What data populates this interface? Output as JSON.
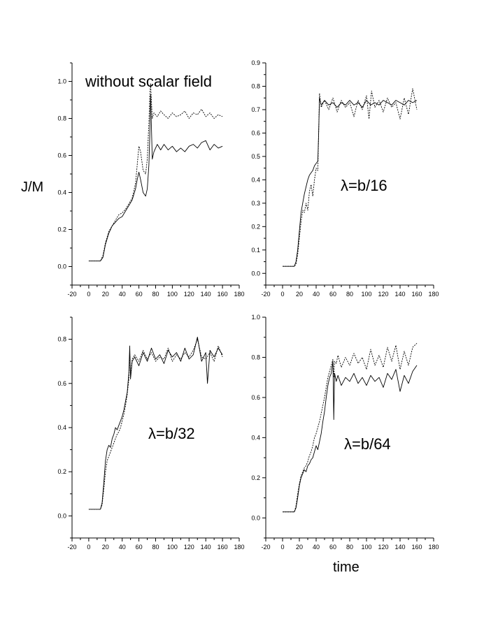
{
  "figure": {
    "ylabel": "J/M",
    "xlabel": "time"
  },
  "chart_data": [
    {
      "type": "line",
      "annotation": "without scalar field",
      "xlim": [
        -20,
        180
      ],
      "ylim": [
        -0.1,
        1.1
      ],
      "xticks": [
        -20,
        0,
        20,
        40,
        60,
        80,
        100,
        120,
        140,
        160,
        180
      ],
      "xtick_labels": [
        "-20",
        "0",
        "20",
        "40",
        "60",
        "80",
        "100",
        "120",
        "140",
        "160",
        "180"
      ],
      "yticks": [
        0.0,
        0.2,
        0.4,
        0.6,
        0.8,
        1.0
      ],
      "ytick_labels": [
        "0.0",
        "0.2",
        "0.4",
        "0.6",
        "0.8",
        "1.0"
      ],
      "series": [
        {
          "style": "solid",
          "x": [
            0,
            10,
            14,
            17,
            20,
            24,
            28,
            32,
            36,
            40,
            44,
            48,
            52,
            56,
            58,
            60,
            62,
            65,
            68,
            70,
            72,
            73,
            74,
            76,
            78,
            82,
            86,
            90,
            95,
            100,
            105,
            110,
            115,
            120,
            125,
            130,
            135,
            140,
            145,
            150,
            155,
            160
          ],
          "y": [
            0.03,
            0.03,
            0.03,
            0.05,
            0.12,
            0.18,
            0.22,
            0.24,
            0.26,
            0.27,
            0.3,
            0.33,
            0.36,
            0.42,
            0.47,
            0.51,
            0.47,
            0.4,
            0.38,
            0.42,
            0.55,
            0.7,
            0.93,
            0.58,
            0.62,
            0.66,
            0.63,
            0.66,
            0.63,
            0.65,
            0.62,
            0.64,
            0.62,
            0.65,
            0.66,
            0.64,
            0.67,
            0.68,
            0.63,
            0.66,
            0.64,
            0.65
          ]
        },
        {
          "style": "dotted",
          "x": [
            0,
            10,
            14,
            17,
            20,
            24,
            28,
            32,
            36,
            40,
            44,
            48,
            52,
            56,
            58,
            60,
            62,
            65,
            68,
            70,
            72,
            73,
            74,
            76,
            78,
            82,
            86,
            90,
            95,
            100,
            105,
            110,
            115,
            120,
            125,
            130,
            135,
            140,
            145,
            150,
            155,
            160
          ],
          "y": [
            0.03,
            0.03,
            0.03,
            0.06,
            0.13,
            0.19,
            0.22,
            0.25,
            0.28,
            0.29,
            0.31,
            0.34,
            0.37,
            0.45,
            0.55,
            0.65,
            0.62,
            0.52,
            0.5,
            0.58,
            0.78,
            0.92,
            0.99,
            0.8,
            0.83,
            0.81,
            0.84,
            0.82,
            0.8,
            0.83,
            0.81,
            0.82,
            0.84,
            0.8,
            0.83,
            0.82,
            0.85,
            0.81,
            0.83,
            0.8,
            0.82,
            0.81
          ]
        }
      ]
    },
    {
      "type": "line",
      "annotation": "λ=b/16",
      "xlim": [
        -20,
        180
      ],
      "ylim": [
        -0.05,
        0.9
      ],
      "xticks": [
        -20,
        0,
        20,
        40,
        60,
        80,
        100,
        120,
        140,
        160,
        180
      ],
      "xtick_labels": [
        "-20",
        "0",
        "20",
        "40",
        "60",
        "80",
        "100",
        "120",
        "140",
        "160",
        "180"
      ],
      "yticks": [
        0.0,
        0.1,
        0.2,
        0.3,
        0.4,
        0.5,
        0.6,
        0.7,
        0.8,
        0.9
      ],
      "ytick_labels": [
        "0.0",
        "0.1",
        "0.2",
        "0.3",
        "0.4",
        "0.5",
        "0.6",
        "0.7",
        "0.8",
        "0.9"
      ],
      "series": [
        {
          "style": "solid",
          "x": [
            0,
            10,
            14,
            16,
            18,
            20,
            22,
            24,
            26,
            28,
            30,
            32,
            34,
            36,
            38,
            40,
            42,
            43,
            44,
            46,
            50,
            55,
            60,
            65,
            70,
            75,
            80,
            85,
            90,
            95,
            100,
            105,
            110,
            115,
            120,
            125,
            130,
            135,
            140,
            145,
            150,
            155,
            160
          ],
          "y": [
            0.03,
            0.03,
            0.03,
            0.05,
            0.1,
            0.18,
            0.26,
            0.3,
            0.34,
            0.37,
            0.4,
            0.42,
            0.43,
            0.44,
            0.46,
            0.47,
            0.48,
            0.6,
            0.75,
            0.72,
            0.74,
            0.72,
            0.73,
            0.71,
            0.73,
            0.72,
            0.74,
            0.72,
            0.73,
            0.71,
            0.74,
            0.72,
            0.73,
            0.72,
            0.74,
            0.73,
            0.72,
            0.74,
            0.73,
            0.72,
            0.74,
            0.73,
            0.74
          ]
        },
        {
          "style": "dotted",
          "x": [
            0,
            10,
            14,
            16,
            18,
            20,
            22,
            24,
            26,
            28,
            30,
            32,
            34,
            36,
            38,
            40,
            42,
            43,
            44,
            46,
            50,
            55,
            60,
            65,
            70,
            75,
            80,
            85,
            90,
            95,
            100,
            103,
            106,
            110,
            115,
            120,
            125,
            130,
            135,
            140,
            145,
            150,
            155,
            160
          ],
          "y": [
            0.03,
            0.03,
            0.03,
            0.04,
            0.08,
            0.15,
            0.22,
            0.27,
            0.26,
            0.3,
            0.27,
            0.35,
            0.38,
            0.33,
            0.4,
            0.45,
            0.44,
            0.6,
            0.77,
            0.71,
            0.74,
            0.7,
            0.75,
            0.69,
            0.74,
            0.71,
            0.73,
            0.67,
            0.74,
            0.7,
            0.76,
            0.66,
            0.78,
            0.71,
            0.74,
            0.69,
            0.75,
            0.71,
            0.73,
            0.66,
            0.75,
            0.68,
            0.79,
            0.7
          ]
        }
      ]
    },
    {
      "type": "line",
      "annotation": "λ=b/32",
      "xlim": [
        -20,
        180
      ],
      "ylim": [
        -0.1,
        0.9
      ],
      "xticks": [
        -20,
        0,
        20,
        40,
        60,
        80,
        100,
        120,
        140,
        160,
        180
      ],
      "xtick_labels": [
        "-20",
        "0",
        "20",
        "40",
        "60",
        "80",
        "100",
        "120",
        "140",
        "160",
        "180"
      ],
      "yticks": [
        0.0,
        0.2,
        0.4,
        0.6,
        0.8
      ],
      "ytick_labels": [
        "0.0",
        "0.2",
        "0.4",
        "0.6",
        "0.8"
      ],
      "series": [
        {
          "style": "solid",
          "x": [
            0,
            10,
            14,
            16,
            18,
            20,
            22,
            24,
            26,
            28,
            30,
            32,
            34,
            36,
            38,
            40,
            42,
            44,
            46,
            48,
            49,
            50,
            52,
            55,
            60,
            65,
            70,
            75,
            80,
            85,
            90,
            95,
            100,
            105,
            110,
            115,
            120,
            125,
            130,
            135,
            140,
            142,
            145,
            150,
            155,
            160
          ],
          "y": [
            0.03,
            0.03,
            0.03,
            0.06,
            0.15,
            0.25,
            0.3,
            0.32,
            0.31,
            0.35,
            0.37,
            0.4,
            0.39,
            0.41,
            0.43,
            0.45,
            0.48,
            0.52,
            0.56,
            0.65,
            0.77,
            0.62,
            0.7,
            0.72,
            0.68,
            0.74,
            0.7,
            0.76,
            0.71,
            0.73,
            0.69,
            0.75,
            0.72,
            0.74,
            0.7,
            0.76,
            0.71,
            0.73,
            0.81,
            0.7,
            0.74,
            0.6,
            0.75,
            0.72,
            0.76,
            0.73
          ]
        },
        {
          "style": "dotted",
          "x": [
            0,
            10,
            14,
            16,
            18,
            20,
            22,
            24,
            26,
            28,
            30,
            32,
            34,
            36,
            38,
            40,
            42,
            44,
            46,
            48,
            49,
            50,
            52,
            55,
            60,
            65,
            70,
            75,
            80,
            85,
            90,
            95,
            100,
            105,
            110,
            115,
            120,
            125,
            130,
            135,
            140,
            145,
            150,
            155,
            160
          ],
          "y": [
            0.03,
            0.03,
            0.03,
            0.05,
            0.12,
            0.2,
            0.25,
            0.27,
            0.29,
            0.31,
            0.33,
            0.35,
            0.37,
            0.38,
            0.4,
            0.43,
            0.46,
            0.5,
            0.55,
            0.62,
            0.74,
            0.64,
            0.71,
            0.73,
            0.7,
            0.75,
            0.71,
            0.74,
            0.7,
            0.72,
            0.71,
            0.76,
            0.7,
            0.73,
            0.71,
            0.74,
            0.72,
            0.75,
            0.8,
            0.72,
            0.71,
            0.74,
            0.7,
            0.77,
            0.72
          ]
        }
      ]
    },
    {
      "type": "line",
      "annotation": "λ=b/64",
      "xlim": [
        -20,
        180
      ],
      "ylim": [
        -0.1,
        1.0
      ],
      "xticks": [
        -20,
        0,
        20,
        40,
        60,
        80,
        100,
        120,
        140,
        160,
        180
      ],
      "xtick_labels": [
        "-20",
        "0",
        "20",
        "40",
        "60",
        "80",
        "100",
        "120",
        "140",
        "160",
        "180"
      ],
      "yticks": [
        0.0,
        0.2,
        0.4,
        0.6,
        0.8,
        1.0
      ],
      "ytick_labels": [
        "0.0",
        "0.2",
        "0.4",
        "0.6",
        "0.8",
        "1.0"
      ],
      "series": [
        {
          "style": "solid",
          "x": [
            0,
            10,
            14,
            16,
            18,
            20,
            22,
            24,
            26,
            28,
            30,
            32,
            34,
            36,
            38,
            40,
            42,
            44,
            46,
            48,
            50,
            52,
            54,
            56,
            58,
            60,
            61,
            62,
            64,
            66,
            70,
            75,
            80,
            85,
            90,
            95,
            100,
            105,
            110,
            115,
            120,
            125,
            130,
            135,
            140,
            145,
            150,
            155,
            160
          ],
          "y": [
            0.03,
            0.03,
            0.03,
            0.05,
            0.1,
            0.16,
            0.2,
            0.22,
            0.24,
            0.23,
            0.26,
            0.27,
            0.29,
            0.3,
            0.33,
            0.36,
            0.34,
            0.38,
            0.42,
            0.48,
            0.53,
            0.6,
            0.66,
            0.7,
            0.72,
            0.78,
            0.49,
            0.72,
            0.68,
            0.71,
            0.66,
            0.7,
            0.68,
            0.72,
            0.67,
            0.7,
            0.66,
            0.71,
            0.68,
            0.7,
            0.65,
            0.72,
            0.69,
            0.74,
            0.63,
            0.71,
            0.67,
            0.73,
            0.76
          ]
        },
        {
          "style": "dotted",
          "x": [
            0,
            10,
            14,
            16,
            18,
            20,
            22,
            24,
            26,
            28,
            30,
            32,
            34,
            36,
            38,
            40,
            42,
            44,
            46,
            48,
            50,
            52,
            54,
            56,
            58,
            60,
            61,
            62,
            64,
            66,
            70,
            75,
            80,
            85,
            90,
            95,
            100,
            105,
            110,
            115,
            120,
            125,
            130,
            135,
            140,
            145,
            150,
            155,
            160
          ],
          "y": [
            0.03,
            0.03,
            0.03,
            0.06,
            0.12,
            0.17,
            0.21,
            0.23,
            0.25,
            0.26,
            0.28,
            0.31,
            0.33,
            0.36,
            0.4,
            0.42,
            0.45,
            0.48,
            0.52,
            0.56,
            0.6,
            0.65,
            0.7,
            0.73,
            0.76,
            0.79,
            0.7,
            0.78,
            0.77,
            0.81,
            0.75,
            0.8,
            0.76,
            0.82,
            0.77,
            0.8,
            0.74,
            0.84,
            0.76,
            0.81,
            0.75,
            0.85,
            0.78,
            0.86,
            0.74,
            0.83,
            0.76,
            0.85,
            0.87
          ]
        }
      ]
    }
  ]
}
